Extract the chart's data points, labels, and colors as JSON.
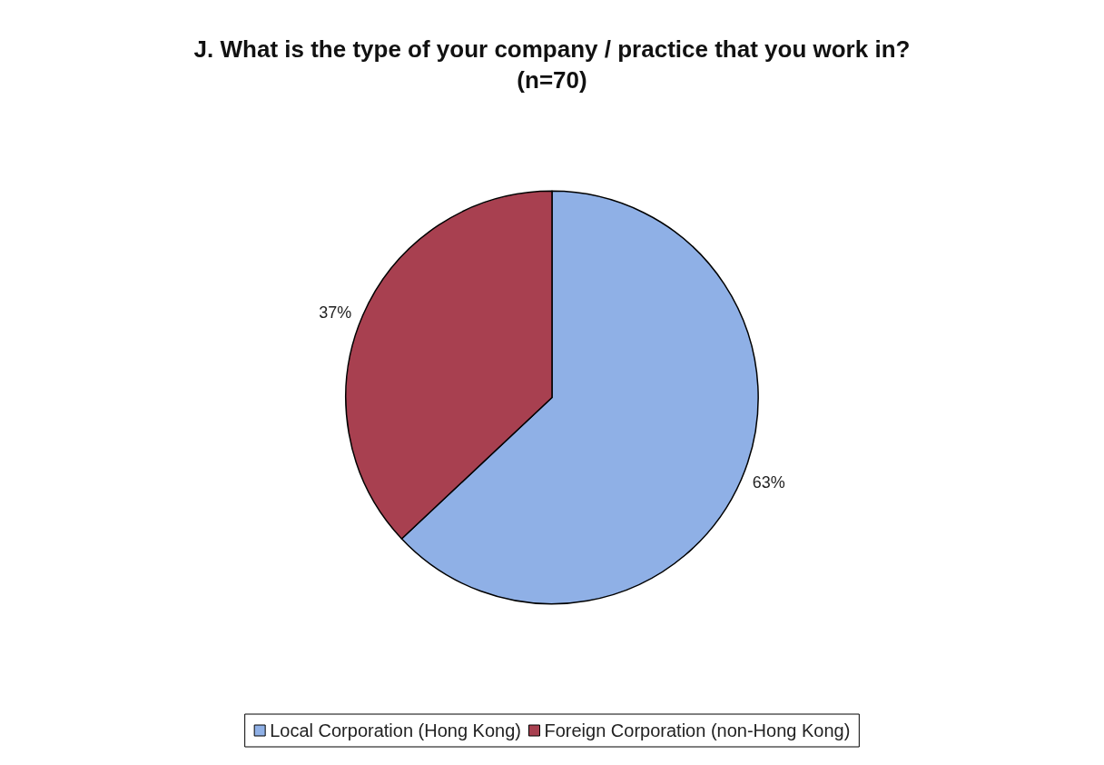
{
  "chart_data": {
    "type": "pie",
    "title": "J. What is the type of your company / practice that you work in?",
    "subtitle": "(n=70)",
    "categories": [
      "Local Corporation (Hong Kong)",
      "Foreign Corporation (non-Hong Kong)"
    ],
    "values": [
      63,
      37
    ],
    "value_labels": [
      "63%",
      "37%"
    ],
    "colors": [
      "#8fb0e6",
      "#a84050"
    ],
    "legend": "bottom"
  }
}
